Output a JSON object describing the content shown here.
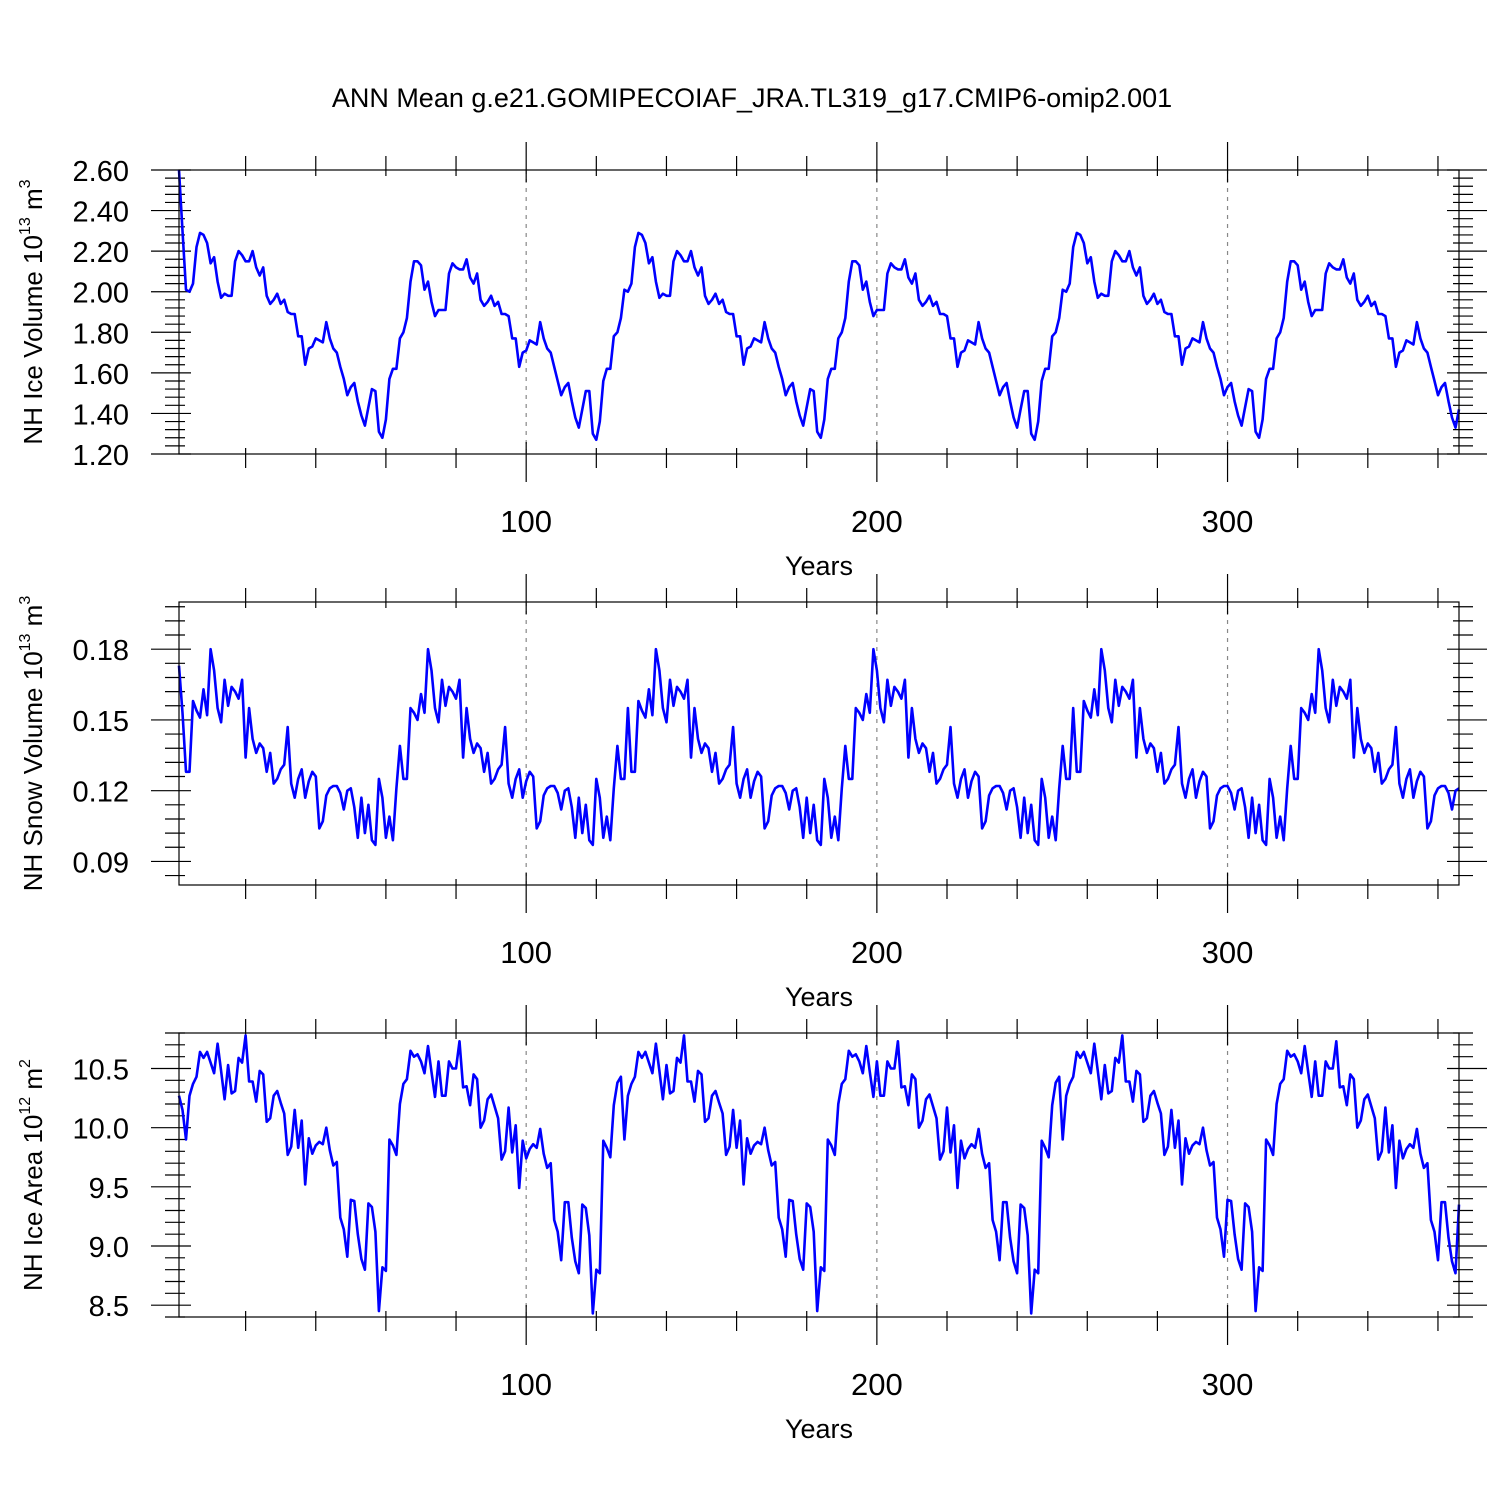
{
  "chart_data": {
    "type": "line",
    "title": "ANN Mean g.e21.GOMIPECOIAF_JRA.TL319_g17.CMIP6-omip2.001",
    "color": "#0000ff",
    "panels": [
      {
        "id": "ice-volume",
        "ylabel_text": "NH Ice Volume 10",
        "ylabel_exponent": "13",
        "ylabel_unit": " m",
        "ylabel_unit_exponent": "3",
        "xlabel": "Years",
        "xlim": [
          1,
          366
        ],
        "ylim": [
          1.2,
          2.6
        ],
        "yticks": [
          1.2,
          1.4,
          1.6,
          1.8,
          2.0,
          2.2,
          2.4,
          2.6
        ],
        "ytick_labels": [
          "1.20",
          "1.40",
          "1.60",
          "1.80",
          "2.00",
          "2.20",
          "2.40",
          "2.60"
        ],
        "xticks": [
          100,
          200,
          300
        ],
        "xtick_labels": [
          "100",
          "200",
          "300"
        ],
        "cycle_start": 2.01,
        "first_year_values": [
          2.6,
          2.3
        ],
        "cycle": [
          2.01,
          2.0,
          2.04,
          2.22,
          2.29,
          2.28,
          2.24,
          2.14,
          2.17,
          2.05,
          1.97,
          1.99,
          1.98,
          1.98,
          2.15,
          2.2,
          2.18,
          2.15,
          2.15,
          2.2,
          2.12,
          2.08,
          2.12,
          1.98,
          1.94,
          1.96,
          1.99,
          1.94,
          1.96,
          1.9,
          1.89,
          1.89,
          1.78,
          1.78,
          1.64,
          1.72,
          1.73,
          1.77,
          1.76,
          1.75,
          1.85,
          1.77,
          1.72,
          1.7,
          1.63,
          1.57,
          1.49,
          1.53,
          1.55,
          1.46,
          1.39,
          1.34,
          1.43,
          1.52,
          1.51,
          1.31,
          1.28,
          1.37,
          1.57,
          1.62,
          1.62,
          1.77,
          1.8,
          1.87,
          2.05,
          2.15,
          2.15,
          2.13,
          2.01,
          2.05,
          1.95,
          1.88,
          1.91,
          1.91,
          1.91,
          2.09,
          2.14,
          2.12,
          2.11,
          2.11,
          2.16,
          2.07,
          2.04,
          2.09,
          1.96,
          1.93,
          1.95,
          1.98,
          1.93,
          1.95,
          1.89,
          1.89,
          1.88,
          1.77,
          1.77,
          1.63,
          1.7,
          1.71,
          1.76,
          1.75,
          1.74,
          1.85,
          1.77,
          1.72,
          1.7,
          1.63,
          1.56,
          1.49,
          1.53,
          1.55,
          1.46,
          1.38,
          1.33,
          1.42,
          1.51,
          1.51,
          1.3,
          1.27,
          1.36,
          1.56,
          1.62,
          1.62,
          1.78,
          1.8,
          1.87
        ]
      },
      {
        "id": "snow-volume",
        "ylabel_text": "NH Snow Volume 10",
        "ylabel_exponent": "13",
        "ylabel_unit": " m",
        "ylabel_unit_exponent": "3",
        "xlabel": "Years",
        "xlim": [
          1,
          366
        ],
        "ylim": [
          0.08,
          0.2
        ],
        "yticks": [
          0.09,
          0.12,
          0.15,
          0.18
        ],
        "ytick_labels": [
          "0.09",
          "0.12",
          "0.15",
          "0.18"
        ],
        "xticks": [
          100,
          200,
          300
        ],
        "xtick_labels": [
          "100",
          "200",
          "300"
        ],
        "cycle_start": 0.128,
        "first_year_values": [
          0.173,
          0.153
        ],
        "cycle": [
          0.128,
          0.128,
          0.158,
          0.154,
          0.151,
          0.163,
          0.152,
          0.18,
          0.171,
          0.155,
          0.149,
          0.167,
          0.156,
          0.164,
          0.162,
          0.159,
          0.167,
          0.134,
          0.155,
          0.142,
          0.136,
          0.14,
          0.138,
          0.128,
          0.136,
          0.123,
          0.125,
          0.129,
          0.131,
          0.147,
          0.123,
          0.117,
          0.125,
          0.129,
          0.117,
          0.124,
          0.128,
          0.126,
          0.104,
          0.107,
          0.118,
          0.121,
          0.122,
          0.122,
          0.119,
          0.112,
          0.12,
          0.121,
          0.113,
          0.1,
          0.117,
          0.102,
          0.114,
          0.099,
          0.097,
          0.125,
          0.117,
          0.1,
          0.109,
          0.099,
          0.121,
          0.139,
          0.125,
          0.125,
          0.155,
          0.153,
          0.15,
          0.161,
          0.153,
          0.18,
          0.171,
          0.155,
          0.149,
          0.167,
          0.156,
          0.164,
          0.162,
          0.159,
          0.167,
          0.134,
          0.155,
          0.142,
          0.136,
          0.14,
          0.138,
          0.128,
          0.136,
          0.123,
          0.125,
          0.129,
          0.131,
          0.147,
          0.123,
          0.117,
          0.125,
          0.129,
          0.117,
          0.124,
          0.128,
          0.126,
          0.104,
          0.107,
          0.118,
          0.121,
          0.122,
          0.122,
          0.119,
          0.112,
          0.12,
          0.121,
          0.113,
          0.1,
          0.117,
          0.102,
          0.114,
          0.099,
          0.097,
          0.125,
          0.117,
          0.1,
          0.109,
          0.099,
          0.121,
          0.139,
          0.125,
          0.125,
          0.155
        ]
      },
      {
        "id": "ice-area",
        "ylabel_text": "NH Ice Area 10",
        "ylabel_exponent": "12",
        "ylabel_unit": " m",
        "ylabel_unit_exponent": "2",
        "xlabel": "Years",
        "xlim": [
          1,
          366
        ],
        "ylim": [
          8.4,
          10.8
        ],
        "yticks": [
          8.5,
          9.0,
          9.5,
          10.0,
          10.5
        ],
        "ytick_labels": [
          "8.5",
          "9.0",
          "9.5",
          "10.0",
          "10.5"
        ],
        "xticks": [
          100,
          200,
          300
        ],
        "xtick_labels": [
          "100",
          "200",
          "300"
        ],
        "cycle_start": 9.9,
        "first_year_values": [
          10.27,
          10.15
        ],
        "cycle": [
          9.9,
          10.27,
          10.37,
          10.43,
          10.64,
          10.59,
          10.64,
          10.55,
          10.46,
          10.71,
          10.48,
          10.24,
          10.53,
          10.29,
          10.31,
          10.59,
          10.55,
          10.78,
          10.39,
          10.39,
          10.22,
          10.48,
          10.45,
          10.05,
          10.08,
          10.27,
          10.31,
          10.21,
          10.12,
          9.77,
          9.84,
          10.15,
          9.83,
          10.06,
          9.52,
          9.91,
          9.78,
          9.85,
          9.88,
          9.86,
          10.0,
          9.81,
          9.68,
          9.71,
          9.24,
          9.14,
          8.91,
          9.39,
          9.38,
          9.1,
          8.89,
          8.8,
          9.36,
          9.33,
          9.12,
          8.45,
          8.82,
          8.79,
          9.9,
          9.85,
          9.77,
          10.2,
          10.37,
          10.41,
          10.65,
          10.6,
          10.62,
          10.56,
          10.46,
          10.69,
          10.47,
          10.26,
          10.56,
          10.27,
          10.27,
          10.56,
          10.5,
          10.5,
          10.73,
          10.34,
          10.35,
          10.19,
          10.45,
          10.41,
          10.0,
          10.06,
          10.24,
          10.28,
          10.18,
          10.08,
          9.73,
          9.8,
          10.17,
          9.79,
          10.02,
          9.49,
          9.89,
          9.74,
          9.82,
          9.86,
          9.83,
          9.99,
          9.78,
          9.66,
          9.7,
          9.22,
          9.12,
          8.88,
          9.37,
          9.37,
          9.07,
          8.87,
          8.77,
          9.35,
          9.32,
          9.09,
          8.43,
          8.8,
          8.77,
          9.89,
          9.83,
          9.75,
          10.19,
          10.38,
          10.43
        ]
      }
    ]
  }
}
